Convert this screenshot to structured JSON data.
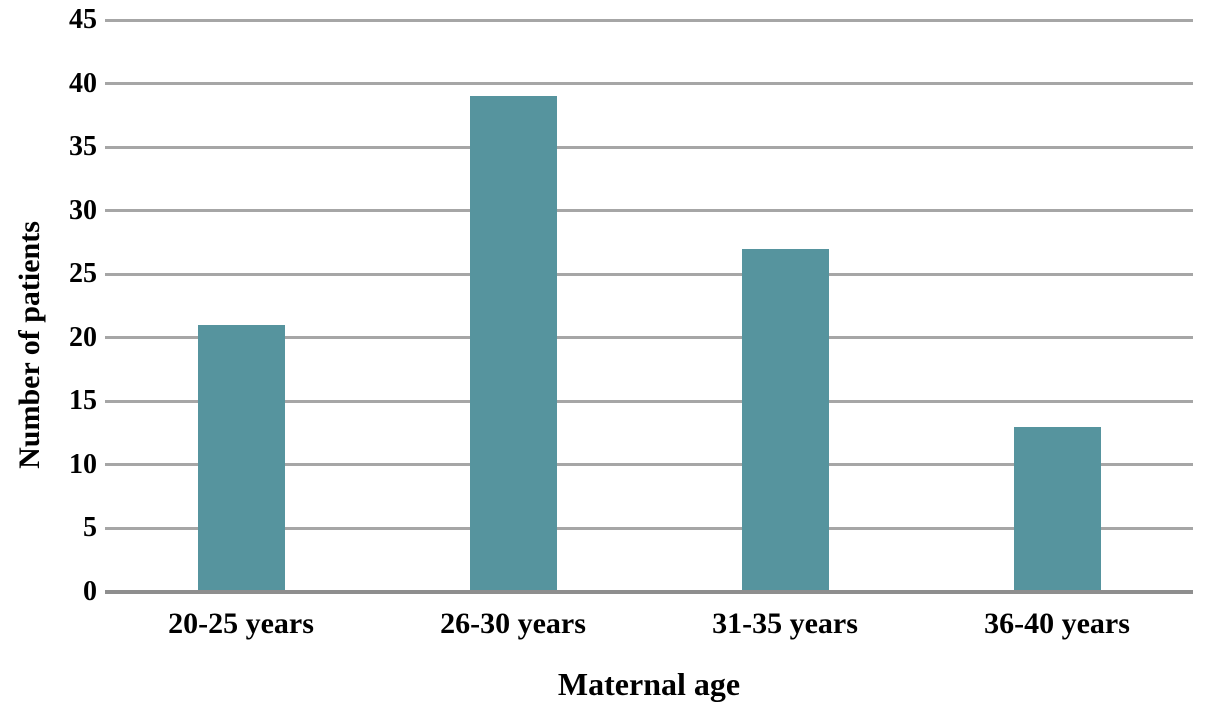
{
  "chart_data": {
    "type": "bar",
    "categories": [
      "20-25 years",
      "26-30 years",
      "31-35 years",
      "36-40 years"
    ],
    "values": [
      21,
      39,
      27,
      13
    ],
    "title": "",
    "xlabel": "Maternal age",
    "ylabel": "Number of patients",
    "ylim": [
      0,
      45
    ],
    "yticks": [
      0,
      5,
      10,
      15,
      20,
      25,
      30,
      35,
      40,
      45
    ],
    "grid": true,
    "legend": false,
    "colors": {
      "bar": "#56949E",
      "gridline": "#A6A6A6",
      "baseline": "#8E8E8E",
      "text": "#000000",
      "background": "#FFFFFF"
    }
  }
}
